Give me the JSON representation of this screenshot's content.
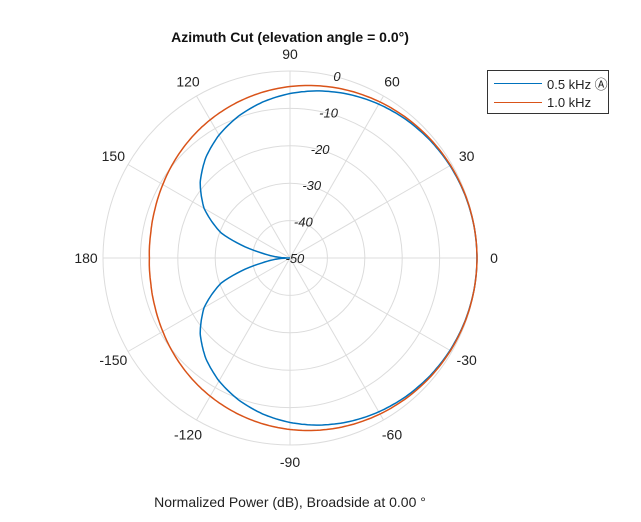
{
  "chart_data": {
    "type": "line",
    "subtype": "polar",
    "title": "Azimuth Cut (elevation angle = 0.0°)",
    "xlabel": "Normalized Power (dB), Broadside at 0.00 °",
    "angle_ticks": [
      0,
      30,
      60,
      90,
      120,
      150,
      180,
      -150,
      -120,
      -90,
      -60,
      -30
    ],
    "angle_tick_labels": [
      "0",
      "30",
      "60",
      "90",
      "120",
      "150",
      "180",
      "-150",
      "-120",
      "-90",
      "-60",
      "-30"
    ],
    "r_ticks": [
      0,
      -10,
      -20,
      -30,
      -40,
      -50
    ],
    "r_tick_labels": [
      "0",
      "-10",
      "-20",
      "-30",
      "-40",
      "-50"
    ],
    "rlim": [
      -50,
      0
    ],
    "grid": true,
    "legend_position": "top-right",
    "angles_deg": [
      -180,
      -170,
      -160,
      -150,
      -140,
      -130,
      -120,
      -110,
      -100,
      -90,
      -80,
      -70,
      -60,
      -50,
      -40,
      -30,
      -20,
      -10,
      0,
      10,
      20,
      30,
      40,
      50,
      60,
      70,
      80,
      90,
      100,
      110,
      120,
      130,
      140,
      150,
      160,
      170,
      180
    ],
    "series": [
      {
        "name": "0.5 kHz Ⓐ",
        "color": "#0072BD",
        "values": [
          -50,
          -42.4,
          -30.4,
          -23.48,
          -18.64,
          -14.96,
          -12.04,
          -9.66,
          -7.68,
          -6.02,
          -4.63,
          -3.47,
          -2.5,
          -1.71,
          -1.08,
          -0.6,
          -0.27,
          -0.07,
          0,
          -0.07,
          -0.27,
          -0.6,
          -1.08,
          -1.71,
          -2.5,
          -3.47,
          -4.63,
          -6.02,
          -7.68,
          -9.66,
          -12.04,
          -14.96,
          -18.64,
          -23.48,
          -30.4,
          -42.4,
          -50
        ]
      },
      {
        "name": "1.0 kHz",
        "color": "#D95319",
        "values": [
          -12.4,
          -12.19,
          -11.6,
          -10.73,
          -9.66,
          -8.5,
          -7.33,
          -6.2,
          -5.13,
          -4.15,
          -3.27,
          -2.5,
          -1.83,
          -1.27,
          -0.81,
          -0.45,
          -0.2,
          -0.05,
          0,
          -0.05,
          -0.2,
          -0.45,
          -0.81,
          -1.27,
          -1.83,
          -2.5,
          -3.27,
          -4.15,
          -5.13,
          -6.2,
          -7.33,
          -8.5,
          -9.66,
          -10.73,
          -11.6,
          -12.19,
          -12.4
        ]
      }
    ]
  }
}
